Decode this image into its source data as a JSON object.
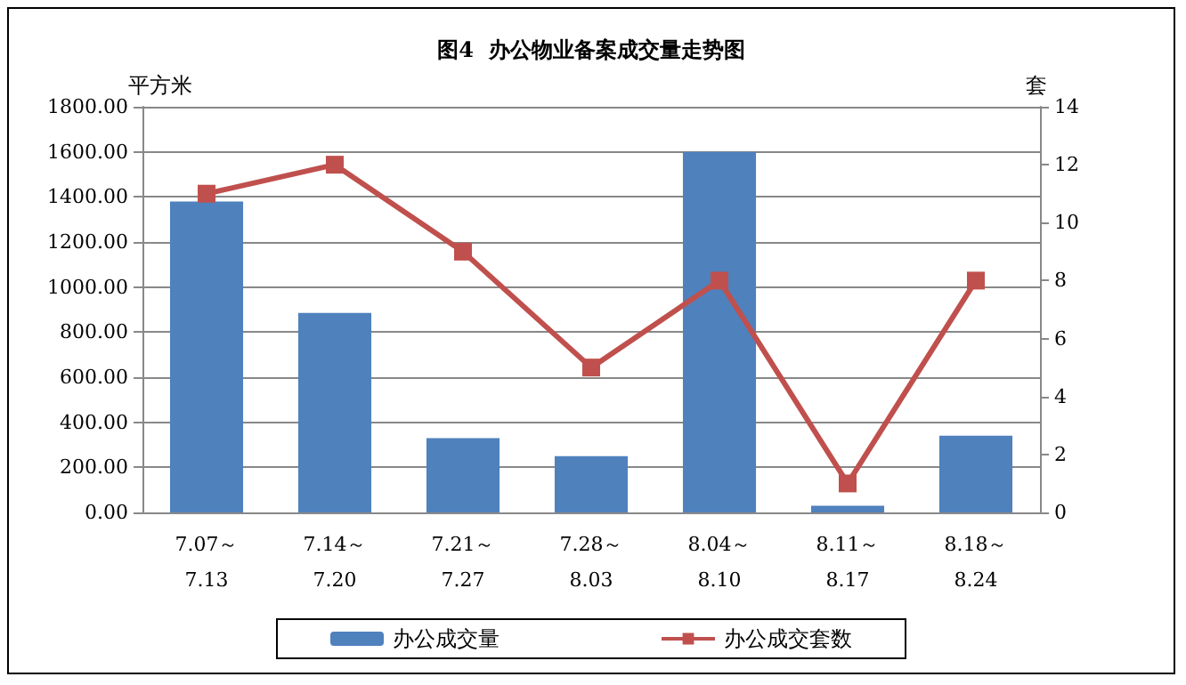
{
  "chart_data": {
    "type": "bar",
    "title": "图4  办公物业备案成交量走势图",
    "ylabel": "平方米",
    "y2label": "套",
    "categories": [
      "7.07～\n7.13",
      "7.14～\n7.20",
      "7.21～\n7.27",
      "7.28～\n8.03",
      "8.04～\n8.10",
      "8.11～\n8.17",
      "8.18～\n8.24"
    ],
    "series": [
      {
        "name": "办公成交量",
        "color": "#4f81bd",
        "values": [
          1380,
          885,
          330,
          250,
          1600,
          30,
          340
        ]
      },
      {
        "name": "办公成交套数",
        "type": "line",
        "axis": "y2",
        "color": "#c0504d",
        "marker": "square",
        "values": [
          11,
          12,
          9,
          5,
          8,
          1,
          8
        ]
      }
    ],
    "ylim": [
      0,
      1800
    ],
    "yticks": [
      {
        "value": 0,
        "label": "0.00"
      },
      {
        "value": 200,
        "label": "200.00"
      },
      {
        "value": 400,
        "label": "400.00"
      },
      {
        "value": 600,
        "label": "600.00"
      },
      {
        "value": 800,
        "label": "800.00"
      },
      {
        "value": 1000,
        "label": "1000.00"
      },
      {
        "value": 1200,
        "label": "1200.00"
      },
      {
        "value": 1400,
        "label": "1400.00"
      },
      {
        "value": 1600,
        "label": "1600.00"
      },
      {
        "value": 1800,
        "label": "1800.00"
      }
    ],
    "y2lim": [
      0,
      14
    ],
    "y2ticks": [
      0,
      2,
      4,
      6,
      8,
      10,
      12,
      14
    ],
    "grid": "y",
    "legend": "bottom"
  }
}
